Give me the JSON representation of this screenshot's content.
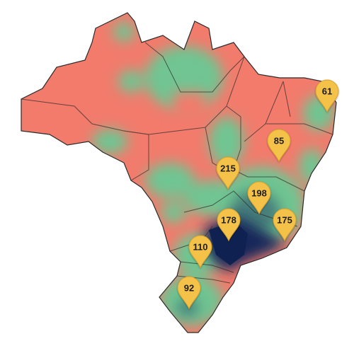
{
  "pins": [
    {
      "label": 61
    },
    {
      "label": 85
    },
    {
      "label": 215
    },
    {
      "label": 198
    },
    {
      "label": 178
    },
    {
      "label": 175
    },
    {
      "label": 110
    },
    {
      "label": 92
    }
  ]
}
